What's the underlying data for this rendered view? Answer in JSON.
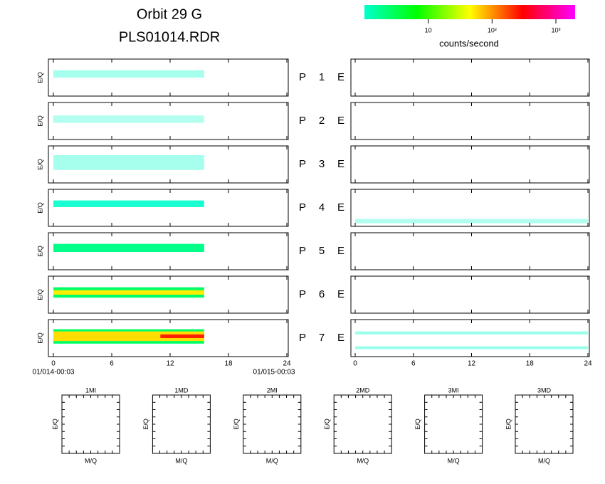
{
  "title": "Orbit 29 G",
  "subtitle": "PLS01014.RDR",
  "colorbar": {
    "label": "counts/second",
    "clim": [
      1,
      2000
    ],
    "log": true,
    "ticks": [
      10,
      {
        "value": 100,
        "label": "10²"
      },
      {
        "value": 1000,
        "label": "10³"
      }
    ],
    "colors": [
      "#00ffcc",
      "#00ff00",
      "#ffff00",
      "#ff0000",
      "#ff00ff"
    ]
  },
  "chart_data": {
    "type": "spectrogram",
    "ylabel": "E/Q",
    "xlim": [
      0,
      24
    ],
    "xticks": [
      0,
      6,
      12,
      18,
      24
    ],
    "ylim": [
      0,
      1
    ],
    "x_start_label": "01/014-00:03",
    "x_end_label": "01/015-00:03",
    "rows": [
      {
        "label": "P",
        "id": "1",
        "right_label": "E",
        "left": [
          {
            "x": [
              0,
              15.5
            ],
            "y": [
              0.5,
              0.7
            ],
            "color": "#00ffcc",
            "opacity": 0.35
          }
        ],
        "right": []
      },
      {
        "label": "P",
        "id": "2",
        "right_label": "E",
        "left": [
          {
            "x": [
              0,
              15.5
            ],
            "y": [
              0.45,
              0.65
            ],
            "color": "#00ffcc",
            "opacity": 0.3
          }
        ],
        "right": []
      },
      {
        "label": "P",
        "id": "3",
        "right_label": "E",
        "left": [
          {
            "x": [
              0,
              15.5
            ],
            "y": [
              0.35,
              0.75
            ],
            "color": "#00ffcc",
            "opacity": 0.35
          }
        ],
        "right": []
      },
      {
        "label": "P",
        "id": "4",
        "right_label": "E",
        "left": [
          {
            "x": [
              0,
              15.5
            ],
            "y": [
              0.52,
              0.7
            ],
            "color": "#00ffcc",
            "opacity": 0.9
          }
        ],
        "right": [
          {
            "x": [
              0,
              24
            ],
            "y": [
              0.08,
              0.2
            ],
            "color": "#00ffcc",
            "opacity": 0.3
          }
        ]
      },
      {
        "label": "P",
        "id": "5",
        "right_label": "E",
        "left": [
          {
            "x": [
              0,
              15.5
            ],
            "y": [
              0.48,
              0.7
            ],
            "color": "#00ff88",
            "opacity": 1
          }
        ],
        "right": []
      },
      {
        "label": "P",
        "id": "6",
        "right_label": "E",
        "left": [
          {
            "x": [
              0,
              15.5
            ],
            "y": [
              0.42,
              0.7
            ],
            "color": "#00ff66",
            "opacity": 1
          },
          {
            "x": [
              0,
              15.5
            ],
            "y": [
              0.5,
              0.62
            ],
            "color": "#ffee00",
            "opacity": 1
          }
        ],
        "right": []
      },
      {
        "label": "P",
        "id": "7",
        "right_label": "E",
        "left": [
          {
            "x": [
              0,
              15.5
            ],
            "y": [
              0.35,
              0.74
            ],
            "color": "#00ff66",
            "opacity": 1
          },
          {
            "x": [
              0,
              15.5
            ],
            "y": [
              0.42,
              0.68
            ],
            "color": "#ffdd00",
            "opacity": 1
          },
          {
            "x": [
              11,
              15.5
            ],
            "y": [
              0.5,
              0.6
            ],
            "color": "#ff2200",
            "opacity": 1
          }
        ],
        "right": [
          {
            "x": [
              0,
              24
            ],
            "y": [
              0.6,
              0.68
            ],
            "color": "#00ffcc",
            "opacity": 0.4
          },
          {
            "x": [
              0,
              24
            ],
            "y": [
              0.2,
              0.28
            ],
            "color": "#00ffcc",
            "opacity": 0.4
          }
        ]
      }
    ]
  },
  "mass_panels": {
    "ylabel": "E/Q",
    "xlabel": "M/Q",
    "titles": [
      "1MI",
      "1MD",
      "2MI",
      "2MD",
      "3MI",
      "3MD"
    ]
  }
}
